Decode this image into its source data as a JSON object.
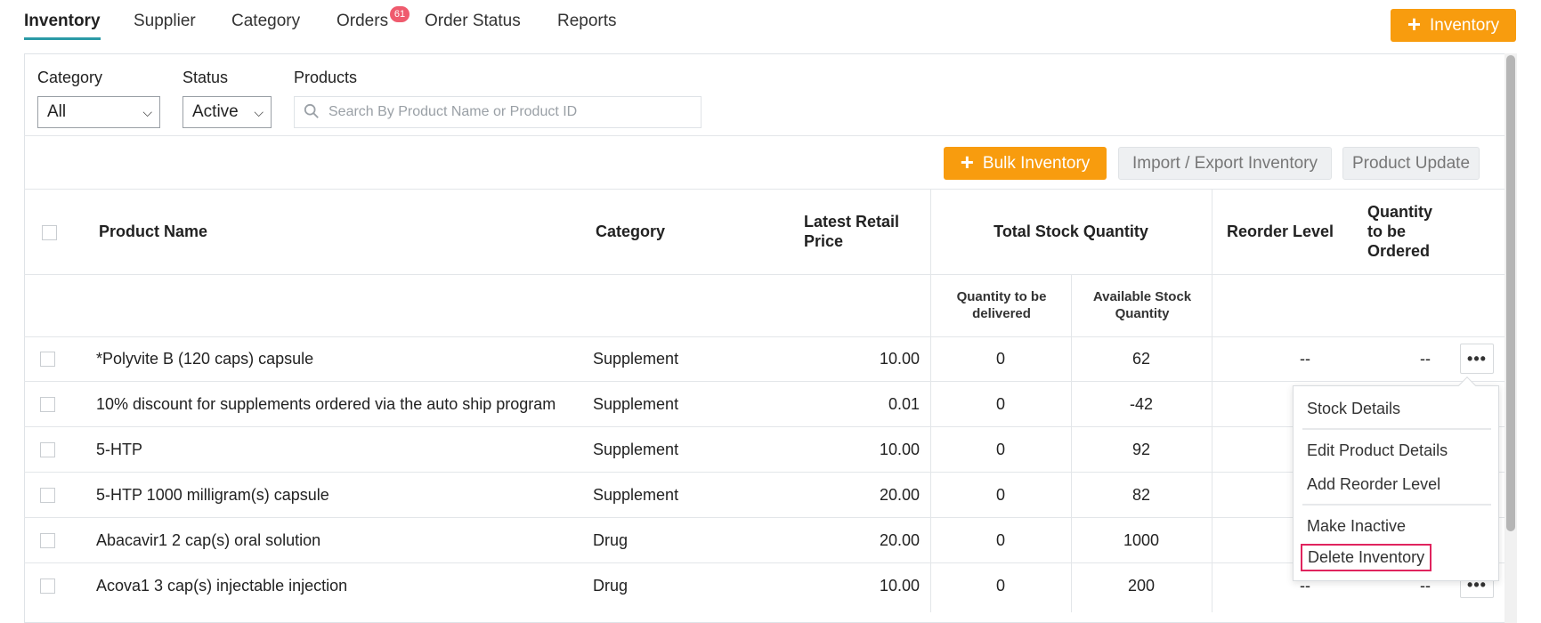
{
  "nav": {
    "tabs": [
      {
        "label": "Inventory",
        "active": true
      },
      {
        "label": "Supplier"
      },
      {
        "label": "Category"
      },
      {
        "label": "Orders",
        "badge": "61"
      },
      {
        "label": "Order Status"
      },
      {
        "label": "Reports"
      }
    ],
    "add_inventory_label": "Inventory"
  },
  "filters": {
    "category_label": "Category",
    "category_value": "All",
    "status_label": "Status",
    "status_value": "Active",
    "products_label": "Products",
    "search_placeholder": "Search By Product Name or Product ID"
  },
  "actions": {
    "bulk_inventory": "Bulk Inventory",
    "import_export": "Import / Export Inventory",
    "product_update": "Product Update"
  },
  "table": {
    "headers": {
      "product_name": "Product Name",
      "category": "Category",
      "latest_retail_price": "Latest Retail Price",
      "total_stock_quantity": "Total Stock Quantity",
      "qty_to_be_delivered": "Quantity to be delivered",
      "available_stock_quantity": "Available Stock Quantity",
      "reorder_level": "Reorder Level",
      "quantity_to_be_ordered": "Quantity to be Ordered"
    },
    "rows": [
      {
        "name": "*Polyvite B (120 caps) capsule",
        "category": "Supplement",
        "price": "10.00",
        "to_deliver": "0",
        "available": "62",
        "reorder": "--",
        "to_order": "--"
      },
      {
        "name": "10% discount for supplements ordered via the auto ship program",
        "category": "Supplement",
        "price": "0.01",
        "to_deliver": "0",
        "available": "-42",
        "reorder": "",
        "to_order": ""
      },
      {
        "name": "5-HTP",
        "category": "Supplement",
        "price": "10.00",
        "to_deliver": "0",
        "available": "92",
        "reorder": "",
        "to_order": ""
      },
      {
        "name": "5-HTP 1000 milligram(s) capsule",
        "category": "Supplement",
        "price": "20.00",
        "to_deliver": "0",
        "available": "82",
        "reorder": "",
        "to_order": ""
      },
      {
        "name": "Abacavir1 2 cap(s) oral solution",
        "category": "Drug",
        "price": "20.00",
        "to_deliver": "0",
        "available": "1000",
        "reorder": "",
        "to_order": ""
      },
      {
        "name": "Acova1 3 cap(s) injectable injection",
        "category": "Drug",
        "price": "10.00",
        "to_deliver": "0",
        "available": "200",
        "reorder": "--",
        "to_order": "--"
      }
    ]
  },
  "row_menu": {
    "items": [
      "Stock Details",
      "Edit Product Details",
      "Add Reorder Level",
      "Make Inactive",
      "Delete Inventory"
    ]
  }
}
